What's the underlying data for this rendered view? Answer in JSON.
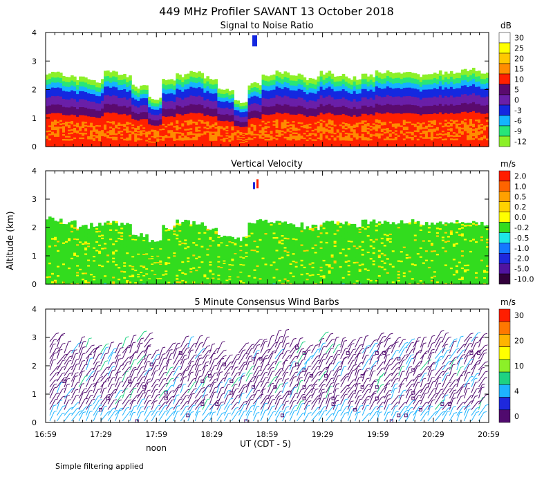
{
  "title": "449 MHz Profiler SAVANT 13 October 2018",
  "y_axis_label": "Altitude (km)",
  "x_axis_label": "UT  (CDT - 5)",
  "noon_label": "noon",
  "footer_note": "Simple filtering applied",
  "x_ticks": [
    "16:59",
    "17:29",
    "17:59",
    "18:29",
    "18:59",
    "19:29",
    "19:59",
    "20:29",
    "20:59"
  ],
  "y_ticks": [
    "0",
    "1",
    "2",
    "3",
    "4"
  ],
  "chart_data": [
    {
      "type": "heatmap",
      "title": "Signal to Noise Ratio",
      "unit": "dB",
      "ylim": [
        0,
        4
      ],
      "colorbar": [
        {
          "label": "30",
          "color": "#ffffff"
        },
        {
          "label": "25",
          "color": "#ffff00"
        },
        {
          "label": "20",
          "color": "#ffc800"
        },
        {
          "label": "15",
          "color": "#ff8c00"
        },
        {
          "label": "10",
          "color": "#ff2000"
        },
        {
          "label": "5",
          "color": "#5a0a6e"
        },
        {
          "label": "0",
          "color": "#6a1fa8"
        },
        {
          "label": "-3",
          "color": "#1428e0"
        },
        {
          "label": "-6",
          "color": "#14b4ff"
        },
        {
          "label": "-9",
          "color": "#28e678"
        },
        {
          "label": "-12",
          "color": "#8cf028"
        }
      ],
      "profile_top_km": [
        2.6,
        2.5,
        2.4,
        2.3,
        2.6,
        2.5,
        2.1,
        1.7,
        2.3,
        2.5,
        2.6,
        2.4,
        2.0,
        1.6,
        2.2,
        2.5,
        2.6,
        2.5,
        2.4,
        2.6,
        2.5,
        2.4,
        2.5,
        2.6,
        2.6,
        2.6,
        2.5,
        2.6,
        2.6,
        2.7,
        2.6
      ]
    },
    {
      "type": "heatmap",
      "title": "Vertical Velocity",
      "unit": "m/s",
      "ylim": [
        0,
        4
      ],
      "colorbar": [
        {
          "label": "2.0",
          "color": "#ff1e00"
        },
        {
          "label": "1.0",
          "color": "#ff6400"
        },
        {
          "label": "0.5",
          "color": "#ffa000"
        },
        {
          "label": "0.2",
          "color": "#ffd200"
        },
        {
          "label": "0.0",
          "color": "#ffff00"
        },
        {
          "label": "-0.2",
          "color": "#32dc1e"
        },
        {
          "label": "-0.5",
          "color": "#1ee6e6"
        },
        {
          "label": "-1.0",
          "color": "#1478ff"
        },
        {
          "label": "-2.0",
          "color": "#1e28dc"
        },
        {
          "label": "-5.0",
          "color": "#5014a0"
        },
        {
          "label": "-10.0",
          "color": "#32003c"
        }
      ],
      "profile_top_km": [
        2.3,
        2.2,
        2.0,
        2.1,
        2.2,
        2.1,
        1.7,
        1.5,
        2.0,
        2.2,
        2.2,
        2.0,
        1.7,
        1.6,
        2.2,
        2.2,
        2.2,
        2.1,
        2.0,
        2.2,
        2.2,
        2.1,
        2.2,
        2.2,
        2.2,
        2.2,
        2.1,
        2.2,
        2.2,
        2.2,
        2.1
      ]
    },
    {
      "type": "scatter",
      "title": "5 Minute Consensus Wind Barbs",
      "unit": "m/s",
      "ylim": [
        0,
        4
      ],
      "colorbar": [
        {
          "label": "30",
          "color": "#ff1e00"
        },
        {
          "label": "",
          "color": "#ff7800"
        },
        {
          "label": "20",
          "color": "#ffb400"
        },
        {
          "label": "",
          "color": "#ffff00"
        },
        {
          "label": "10",
          "color": "#8cf028"
        },
        {
          "label": "",
          "color": "#1ed282"
        },
        {
          "label": "4",
          "color": "#1eb4ff"
        },
        {
          "label": "",
          "color": "#1e28dc"
        },
        {
          "label": "0",
          "color": "#500a6e"
        }
      ],
      "profile_top_km": [
        2.9,
        2.5,
        2.8,
        2.6,
        2.5,
        2.7,
        2.9,
        2.3,
        2.5,
        2.8,
        2.7,
        2.6,
        2.2,
        2.5,
        2.8,
        2.8,
        2.9,
        2.7,
        2.6,
        3.0,
        2.8,
        2.7,
        2.8,
        2.9,
        2.8,
        2.8,
        2.7,
        2.9,
        2.8,
        2.9,
        2.9
      ]
    }
  ]
}
